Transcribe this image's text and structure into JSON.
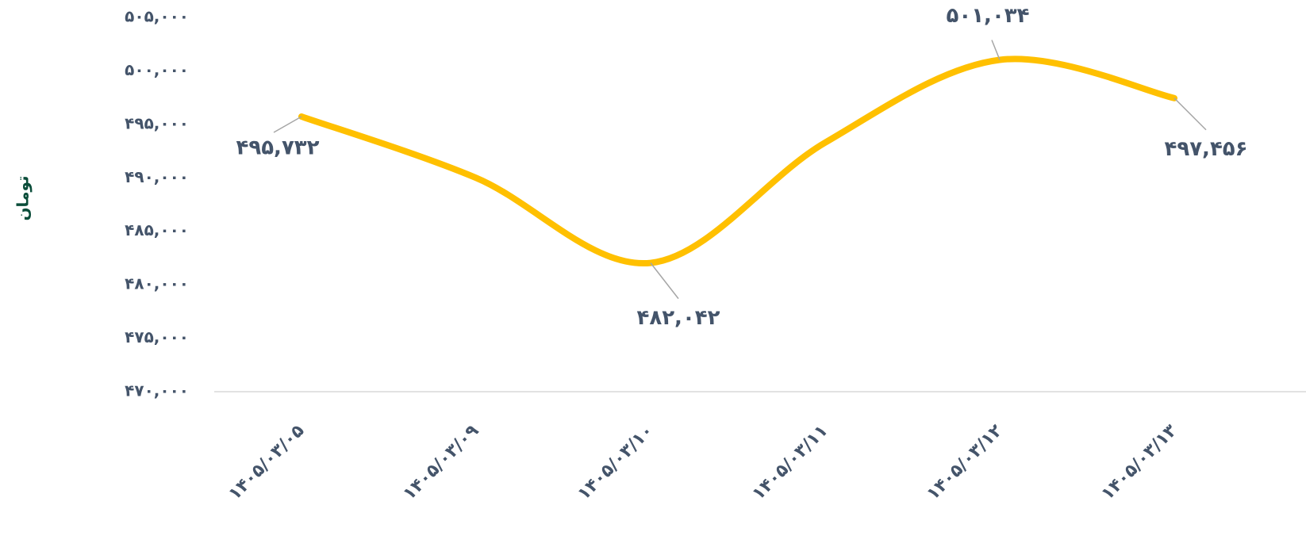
{
  "chart_data": {
    "type": "line",
    "y_label": "تومان",
    "categories": [
      "۱۴۰۵/۰۳/۰۵",
      "۱۴۰۵/۰۳/۰۹",
      "۱۴۰۵/۰۳/۱۰",
      "۱۴۰۵/۰۳/۱۱",
      "۱۴۰۵/۰۳/۱۲",
      "۱۴۰۵/۰۳/۱۳"
    ],
    "series": [
      {
        "name": null,
        "color": "#ffc000",
        "values": [
          495732,
          490000,
          482042,
          493300,
          501034,
          497456
        ],
        "value_labels": [
          "۴۹۵,۷۳۲",
          null,
          "۴۸۲,۰۴۲",
          null,
          "۵۰۱,۰۳۴",
          "۴۹۷,۴۵۶"
        ]
      }
    ],
    "ylim": [
      470000,
      505000
    ],
    "yticks": [
      {
        "value": 470000,
        "label": "۴۷۰,۰۰۰"
      },
      {
        "value": 475000,
        "label": "۴۷۵,۰۰۰"
      },
      {
        "value": 480000,
        "label": "۴۸۰,۰۰۰"
      },
      {
        "value": 485000,
        "label": "۴۸۵,۰۰۰"
      },
      {
        "value": 490000,
        "label": "۴۹۰,۰۰۰"
      },
      {
        "value": 495000,
        "label": "۴۹۵,۰۰۰"
      },
      {
        "value": 500000,
        "label": "۵۰۰,۰۰۰"
      },
      {
        "value": 505000,
        "label": "۵۰۵,۰۰۰"
      }
    ],
    "grid": false
  }
}
